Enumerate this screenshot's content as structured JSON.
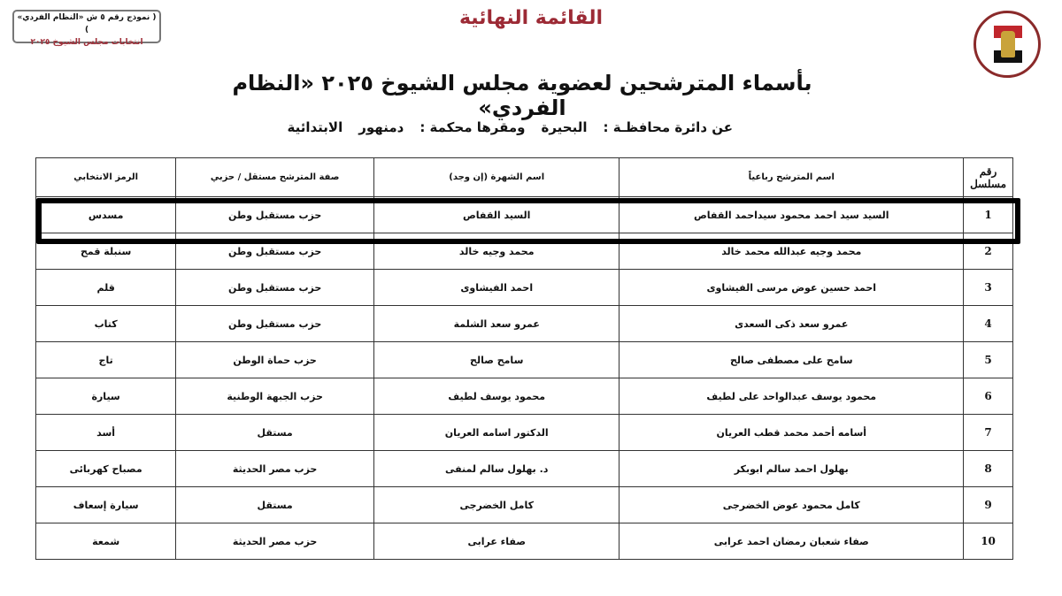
{
  "stamp": {
    "line1": "( نموذج رقم ٥ ش «النظام الفردي» )",
    "line2": "انتخابات مجلس الشيوخ ٢٠٢٥"
  },
  "logo": {
    "name": "national-elections-authority-logo"
  },
  "header": {
    "title": "القائمة النهائية",
    "subtitle": "بأسماء المترشحين لعضوية مجلس الشيوخ ٢٠٢٥ «النظام الفردي»",
    "district_label": "عن دائرة محافظـة :",
    "district_value": "البحيرة",
    "court_label": "ومقرها محكمة :",
    "court_value": "دمنهور",
    "court_type": "الابتدائية"
  },
  "table": {
    "columns": [
      "رقم مسلسل",
      "اسم المترشح رباعياً",
      "اسم الشهرة (إن وجد)",
      "صفة المترشح مستقل / حزبي",
      "الرمز الانتخابي"
    ],
    "highlighted_row": 1,
    "rows": [
      {
        "no": "1",
        "name": "السيد سيد احمد محمود سيداحمد القفاص",
        "fame": "السيد القفاص",
        "status": "حزب مستقبل وطن",
        "symbol": "مسدس"
      },
      {
        "no": "2",
        "name": "محمد وجيه عبدالله محمد خالد",
        "fame": "محمد وجيه خالد",
        "status": "حزب مستقبل وطن",
        "symbol": "سنبلة قمح"
      },
      {
        "no": "3",
        "name": "احمد حسين عوض مرسى الفيشاوى",
        "fame": "احمد الفيشاوى",
        "status": "حزب مستقبل وطن",
        "symbol": "قلم"
      },
      {
        "no": "4",
        "name": "عمرو سعد ذكى السعدى",
        "fame": "عمرو سعد الشلمة",
        "status": "حزب مستقبل وطن",
        "symbol": "كتاب"
      },
      {
        "no": "5",
        "name": "سامح على مصطفى صالح",
        "fame": "سامح صالح",
        "status": "حزب حماة الوطن",
        "symbol": "تاج"
      },
      {
        "no": "6",
        "name": "محمود يوسف عبدالواحد على لطيف",
        "fame": "محمود يوسف لطيف",
        "status": "حزب الجبهة الوطنية",
        "symbol": "سيارة"
      },
      {
        "no": "7",
        "name": "أسامه أحمد محمد قطب العريان",
        "fame": "الدكتور اسامه العريان",
        "status": "مستقل",
        "symbol": "أسد"
      },
      {
        "no": "8",
        "name": "بهلول احمد سالم ابوبكر",
        "fame": "د. بهلول سالم لمنفى",
        "status": "حزب مصر الحديثة",
        "symbol": "مصباح كهربائى"
      },
      {
        "no": "9",
        "name": "كامل محمود عوض الخضرجى",
        "fame": "كامل الخضرجى",
        "status": "مستقل",
        "symbol": "سيارة إسعاف"
      },
      {
        "no": "10",
        "name": "صفاء شعبان رمضان احمد عرابى",
        "fame": "صفاء عرابى",
        "status": "حزب مصر الحديثة",
        "symbol": "شمعة"
      }
    ]
  }
}
